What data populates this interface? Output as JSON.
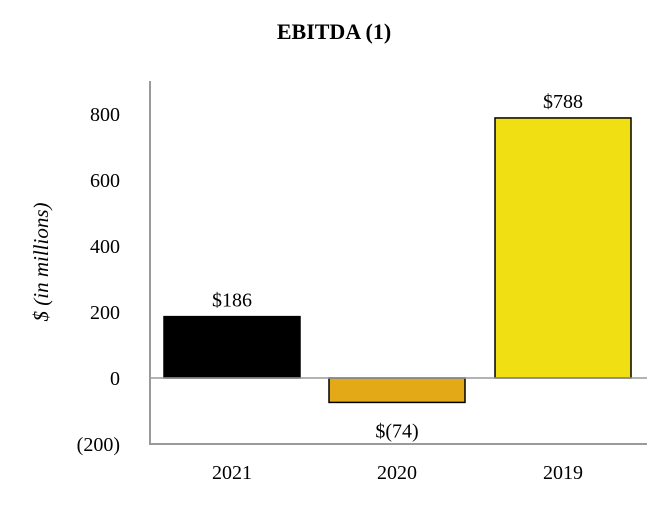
{
  "chart_data": {
    "type": "bar",
    "title": "EBITDA (1)",
    "ylabel": "$ (in millions)",
    "xlabel": "",
    "categories": [
      "2021",
      "2020",
      "2019"
    ],
    "values": [
      186,
      -74,
      788
    ],
    "data_labels": [
      "$186",
      "$(74)",
      "$788"
    ],
    "colors": [
      "#000000",
      "#e3a917",
      "#f0df13"
    ],
    "ylim": [
      -200,
      900
    ],
    "yticks": [
      -200,
      0,
      200,
      400,
      600,
      800
    ],
    "ytick_labels": [
      "(200)",
      "0",
      "200",
      "400",
      "600",
      "800"
    ],
    "grid": false,
    "legend": "none"
  }
}
